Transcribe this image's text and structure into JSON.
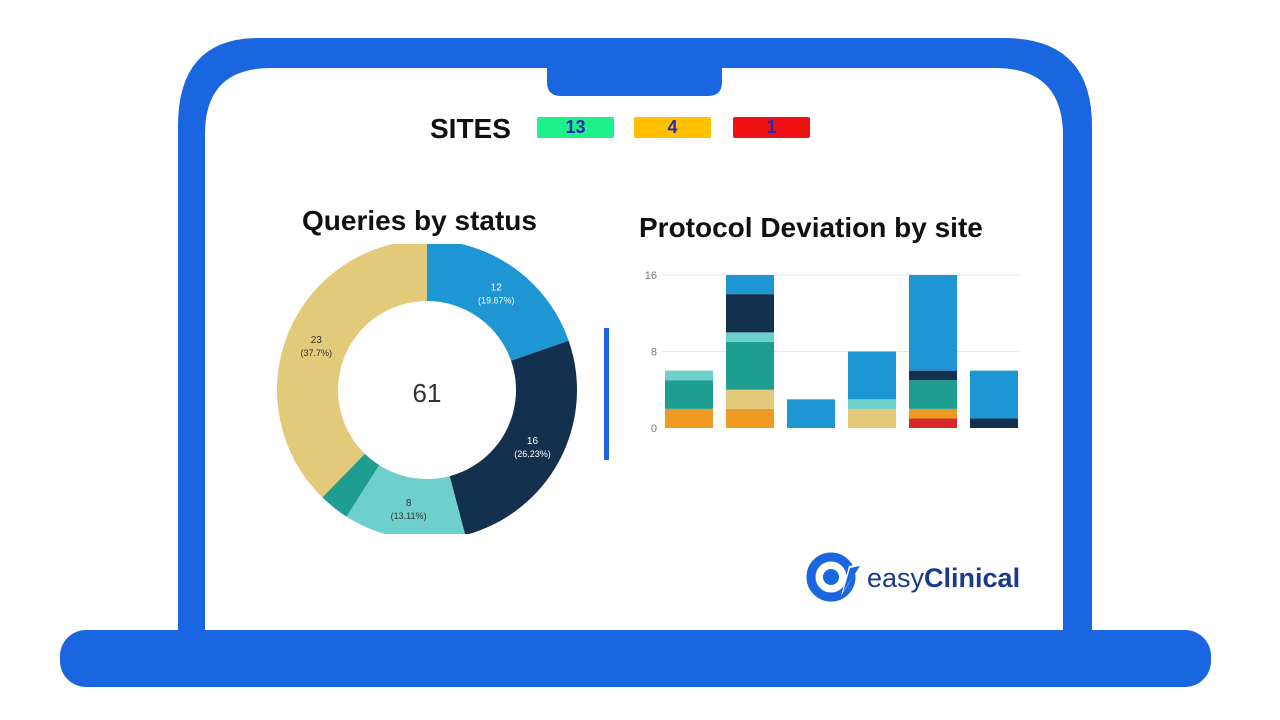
{
  "sites": {
    "label": "SITES",
    "badges": [
      {
        "value": "13",
        "color": "#1ef08a",
        "text_color": "#2a2ab8"
      },
      {
        "value": "4",
        "color": "#ffc000",
        "text_color": "#2a2ab8"
      },
      {
        "value": "1",
        "color": "#f01212",
        "text_color": "#2a2ab8"
      }
    ]
  },
  "queries_panel": {
    "title": "Queries by status",
    "total": "61"
  },
  "deviation_panel": {
    "title": "Protocol Deviation by site"
  },
  "brand": {
    "name_light": "easy",
    "name_bold": "Clinical",
    "color": "#1a3a8a",
    "icon_color": "#1a66e0"
  },
  "colors": {
    "frame": "#1a66e0",
    "gold": "#e3c97a",
    "blue": "#1d96d3",
    "navy": "#14304f",
    "aqua": "#6fcfcc",
    "teal": "#1e9e90",
    "orange": "#ef9a23",
    "red": "#d8282c"
  },
  "chart_data": [
    {
      "type": "pie",
      "title": "Queries by status",
      "center_label": "61",
      "slices": [
        {
          "value": 12,
          "label": "12",
          "pct": "(19.67%)",
          "color": "#1d96d3"
        },
        {
          "value": 16,
          "label": "16",
          "pct": "(26.23%)",
          "color": "#14304f"
        },
        {
          "value": 8,
          "label": "8",
          "pct": "(13.11%)",
          "color": "#6fcfcc"
        },
        {
          "value": 2,
          "label": "",
          "pct": "",
          "color": "#1e9e90"
        },
        {
          "value": 23,
          "label": "23",
          "pct": "(37.7%)",
          "color": "#e3c97a"
        }
      ]
    },
    {
      "type": "bar",
      "stacked": true,
      "title": "Protocol Deviation by site",
      "ylim": [
        0,
        16
      ],
      "yticks": [
        0,
        8,
        16
      ],
      "ytick_labels": [
        "0",
        "8",
        "16"
      ],
      "categories": [
        "",
        "",
        "",
        "",
        "",
        ""
      ],
      "series": [
        {
          "color": "#d8282c",
          "values": [
            0,
            0,
            0,
            0,
            1,
            0
          ]
        },
        {
          "color": "#ef9a23",
          "values": [
            2,
            2,
            0,
            0,
            1,
            0
          ]
        },
        {
          "color": "#e3c97a",
          "values": [
            0,
            2,
            0,
            2,
            0,
            0
          ]
        },
        {
          "color": "#1e9e90",
          "values": [
            3,
            5,
            0,
            0,
            3,
            0
          ]
        },
        {
          "color": "#6fcfcc",
          "values": [
            1,
            1,
            0,
            1,
            0,
            0
          ]
        },
        {
          "color": "#14304f",
          "values": [
            0,
            4,
            0,
            0,
            1,
            1
          ]
        },
        {
          "color": "#1d96d3",
          "values": [
            0,
            2,
            3,
            5,
            10,
            5
          ]
        }
      ]
    }
  ]
}
